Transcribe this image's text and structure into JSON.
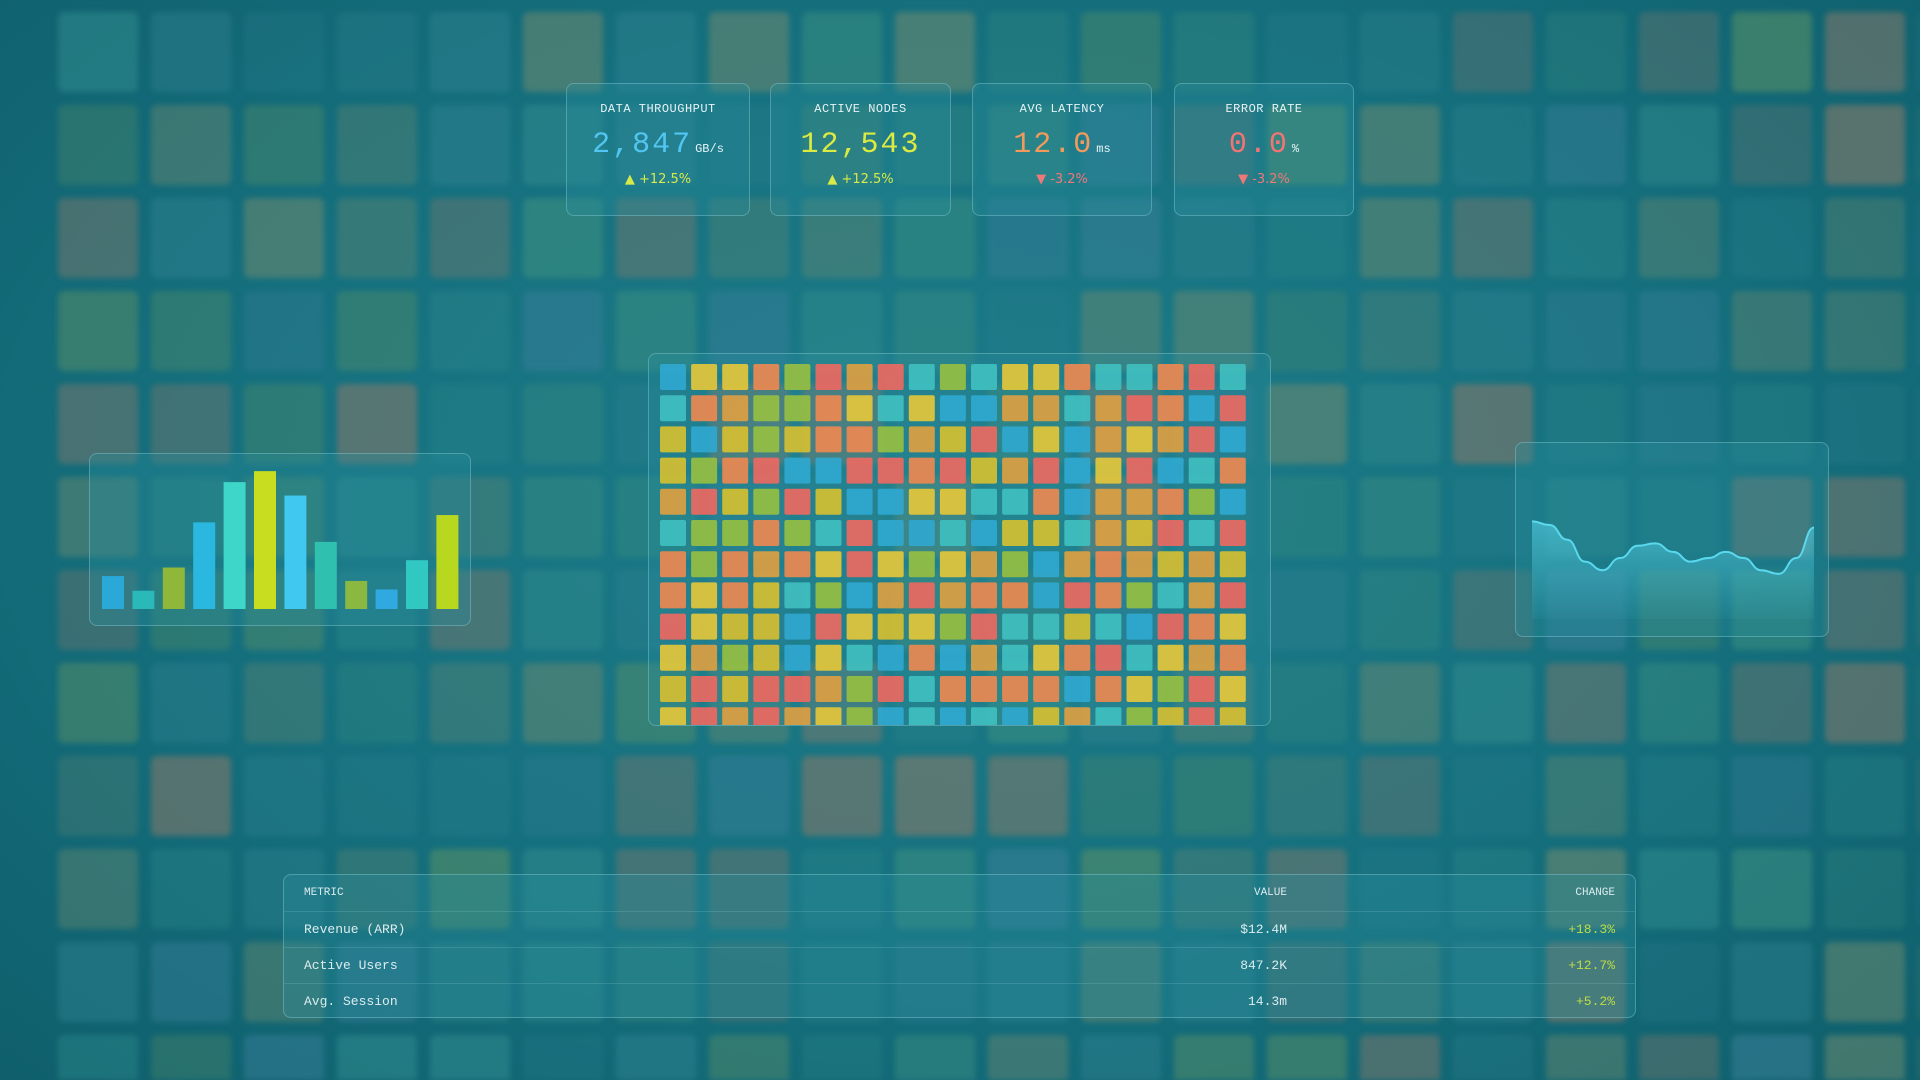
{
  "cards": [
    {
      "label": "DATA THROUGHPUT",
      "value": "2,847",
      "unit": "GB/s",
      "change": "▲ +12.5%",
      "color": "#52c6f2",
      "change_color": "#d6ea4a"
    },
    {
      "label": "ACTIVE NODES",
      "value": "12,543",
      "unit": "",
      "change": "▲ +12.5%",
      "color": "#dcea42",
      "change_color": "#d6ea4a"
    },
    {
      "label": "AVG LATENCY",
      "value": "12.0",
      "unit": "ms",
      "change": "▼ -3.2%",
      "color": "#f29a5a",
      "change_color": "#f07878"
    },
    {
      "label": "ERROR RATE",
      "value": "0.0",
      "unit": "%",
      "change": "▼ -3.2%",
      "color": "#f27474",
      "change_color": "#f07878"
    }
  ],
  "table": {
    "headers": [
      "METRIC",
      "VALUE",
      "CHANGE"
    ],
    "rows": [
      [
        "Revenue (ARR)",
        "$12.4M",
        "+18.3%"
      ],
      [
        "Active Users",
        "847.2K",
        "+12.7%"
      ],
      [
        "Avg. Session",
        "14.3m",
        "+5.2%"
      ]
    ],
    "change_color": "#bedc44"
  },
  "chart_data": [
    {
      "type": "bar",
      "values": [
        27,
        15,
        34,
        71,
        104,
        113,
        93,
        55,
        23,
        16,
        40,
        77
      ],
      "colors": [
        "#2aa8d8",
        "#2ab8b8",
        "#8fb83a",
        "#2ab8e0",
        "#3dd6c8",
        "#c8dc20",
        "#40c8f0",
        "#30c0b0",
        "#8ab840",
        "#30a8e0",
        "#30c8c0",
        "#b8d820"
      ]
    },
    {
      "type": "area",
      "values": [
        80,
        77,
        65,
        47,
        40,
        50,
        60,
        62,
        55,
        47,
        50,
        55,
        50,
        40,
        37,
        50,
        75
      ],
      "color": "#5ad8ee"
    }
  ]
}
